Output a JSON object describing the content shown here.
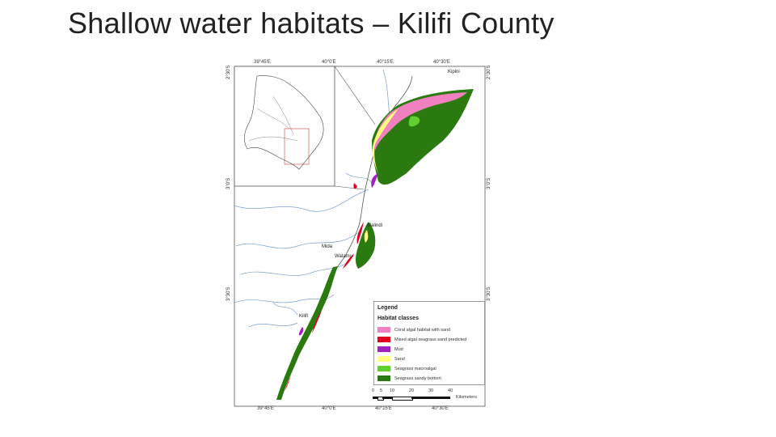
{
  "slide": {
    "title": "Shallow water habitats – Kilifi County"
  },
  "map": {
    "top_coords": [
      "39°45'E",
      "40°0'E",
      "40°15'E",
      "40°30'E"
    ],
    "bottom_coords": [
      "39°45'E",
      "40°0'E",
      "40°15'E",
      "40°30'E"
    ],
    "left_coords": [
      "2°30'S",
      "3°0'S",
      "3°30'S"
    ],
    "right_coords": [
      "2°30'S",
      "3°0'S",
      "3°30'S"
    ],
    "places": {
      "kipini": "Kipini",
      "malindi": "Malindi",
      "mida": "Mida",
      "watamu": "Watamu",
      "kilifi": "Kilifi"
    },
    "colors": {
      "land": "#ffffff",
      "coast": "#555555",
      "river": "#7aa0c8",
      "inset_box": "#c84040"
    }
  },
  "legend": {
    "title": "Legend",
    "subtitle": "Habitat classes",
    "items": [
      {
        "label": "Coral algal habitat with sand",
        "color": "#f080c0"
      },
      {
        "label": "Mixed algal seagrass sand predicted",
        "color": "#e00020"
      },
      {
        "label": "Mud",
        "color": "#a020c0"
      },
      {
        "label": "Sand",
        "color": "#fffe80"
      },
      {
        "label": "Seagrass macroalgal",
        "color": "#60d030"
      },
      {
        "label": "Seagrass sandy bottom",
        "color": "#2a7a10"
      }
    ]
  },
  "scale": {
    "ticks": [
      "0",
      "5",
      "10",
      "20",
      "30",
      "40"
    ],
    "unit": "Kilometers"
  }
}
